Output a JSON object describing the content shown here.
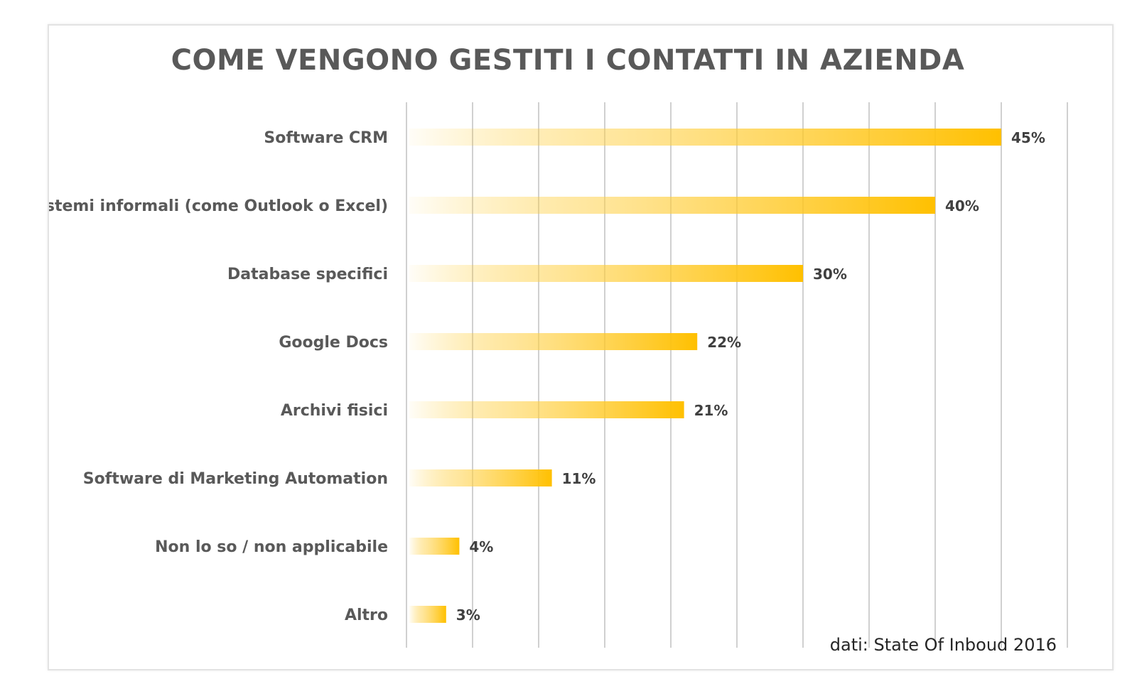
{
  "chart_data": {
    "type": "bar",
    "orientation": "horizontal",
    "title": "COME VENGONO GESTITI I CONTATTI IN AZIENDA",
    "categories": [
      "Software CRM",
      "Sistemi informali (come Outlook o Excel)",
      "Database specifici",
      "Google Docs",
      "Archivi fisici",
      "Software di Marketing Automation",
      "Non lo so / non applicabile",
      "Altro"
    ],
    "values": [
      45,
      40,
      30,
      22,
      21,
      11,
      4,
      3
    ],
    "value_labels": [
      "45%",
      "40%",
      "30%",
      "22%",
      "21%",
      "11%",
      "4%",
      "3%"
    ],
    "unit": "%",
    "xlim": [
      0,
      50
    ],
    "grid": true,
    "grid_step": 5,
    "legend": false,
    "bar_color": "#FFC000",
    "bar_fill": "gradient"
  },
  "source_note": "dati: State Of Inboud 2016"
}
